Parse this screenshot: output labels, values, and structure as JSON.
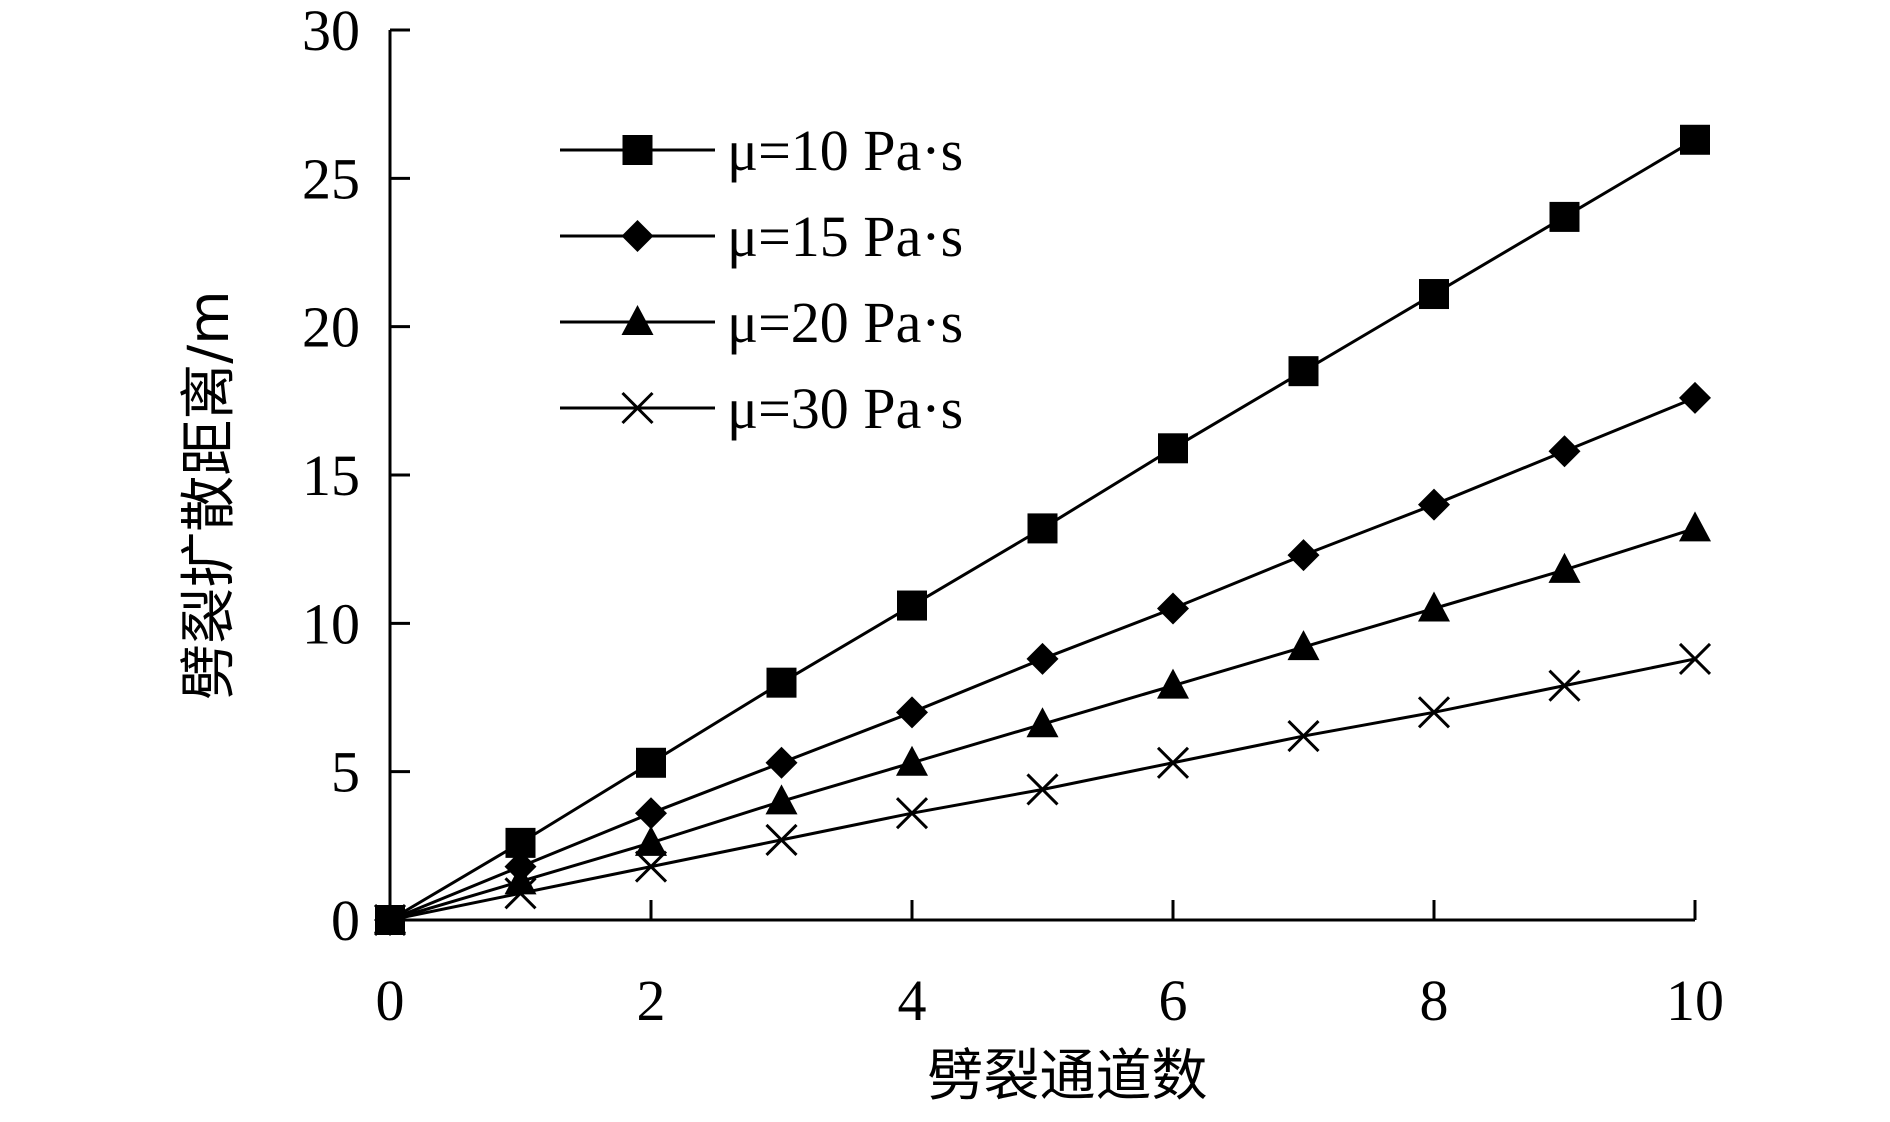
{
  "chart_data": {
    "type": "line",
    "xlabel": "劈裂通道数",
    "ylabel": "劈裂扩散距离/m",
    "xlim": [
      0,
      10
    ],
    "ylim": [
      0,
      30
    ],
    "x_ticks": [
      "0",
      "2",
      "4",
      "6",
      "8",
      "10"
    ],
    "y_ticks": [
      "0",
      "5",
      "10",
      "15",
      "20",
      "25",
      "30"
    ],
    "x": [
      0,
      1,
      2,
      3,
      4,
      5,
      6,
      7,
      8,
      9,
      10
    ],
    "legend_position": "top-left",
    "grid": false,
    "series": [
      {
        "name": "μ=10 Pa·s",
        "marker": "square",
        "values": [
          0,
          2.6,
          5.3,
          8.0,
          10.6,
          13.2,
          15.9,
          18.5,
          21.1,
          23.7,
          26.3
        ]
      },
      {
        "name": "μ=15 Pa·s",
        "marker": "diamond",
        "values": [
          0,
          1.8,
          3.6,
          5.3,
          7.0,
          8.8,
          10.5,
          12.3,
          14.0,
          15.8,
          17.6
        ]
      },
      {
        "name": "μ=20 Pa·s",
        "marker": "triangle",
        "values": [
          0,
          1.3,
          2.6,
          4.0,
          5.3,
          6.6,
          7.9,
          9.2,
          10.5,
          11.8,
          13.2
        ]
      },
      {
        "name": "μ=30 Pa·s",
        "marker": "x",
        "values": [
          0,
          0.9,
          1.8,
          2.7,
          3.6,
          4.4,
          5.3,
          6.2,
          7.0,
          7.9,
          8.8
        ]
      }
    ]
  }
}
